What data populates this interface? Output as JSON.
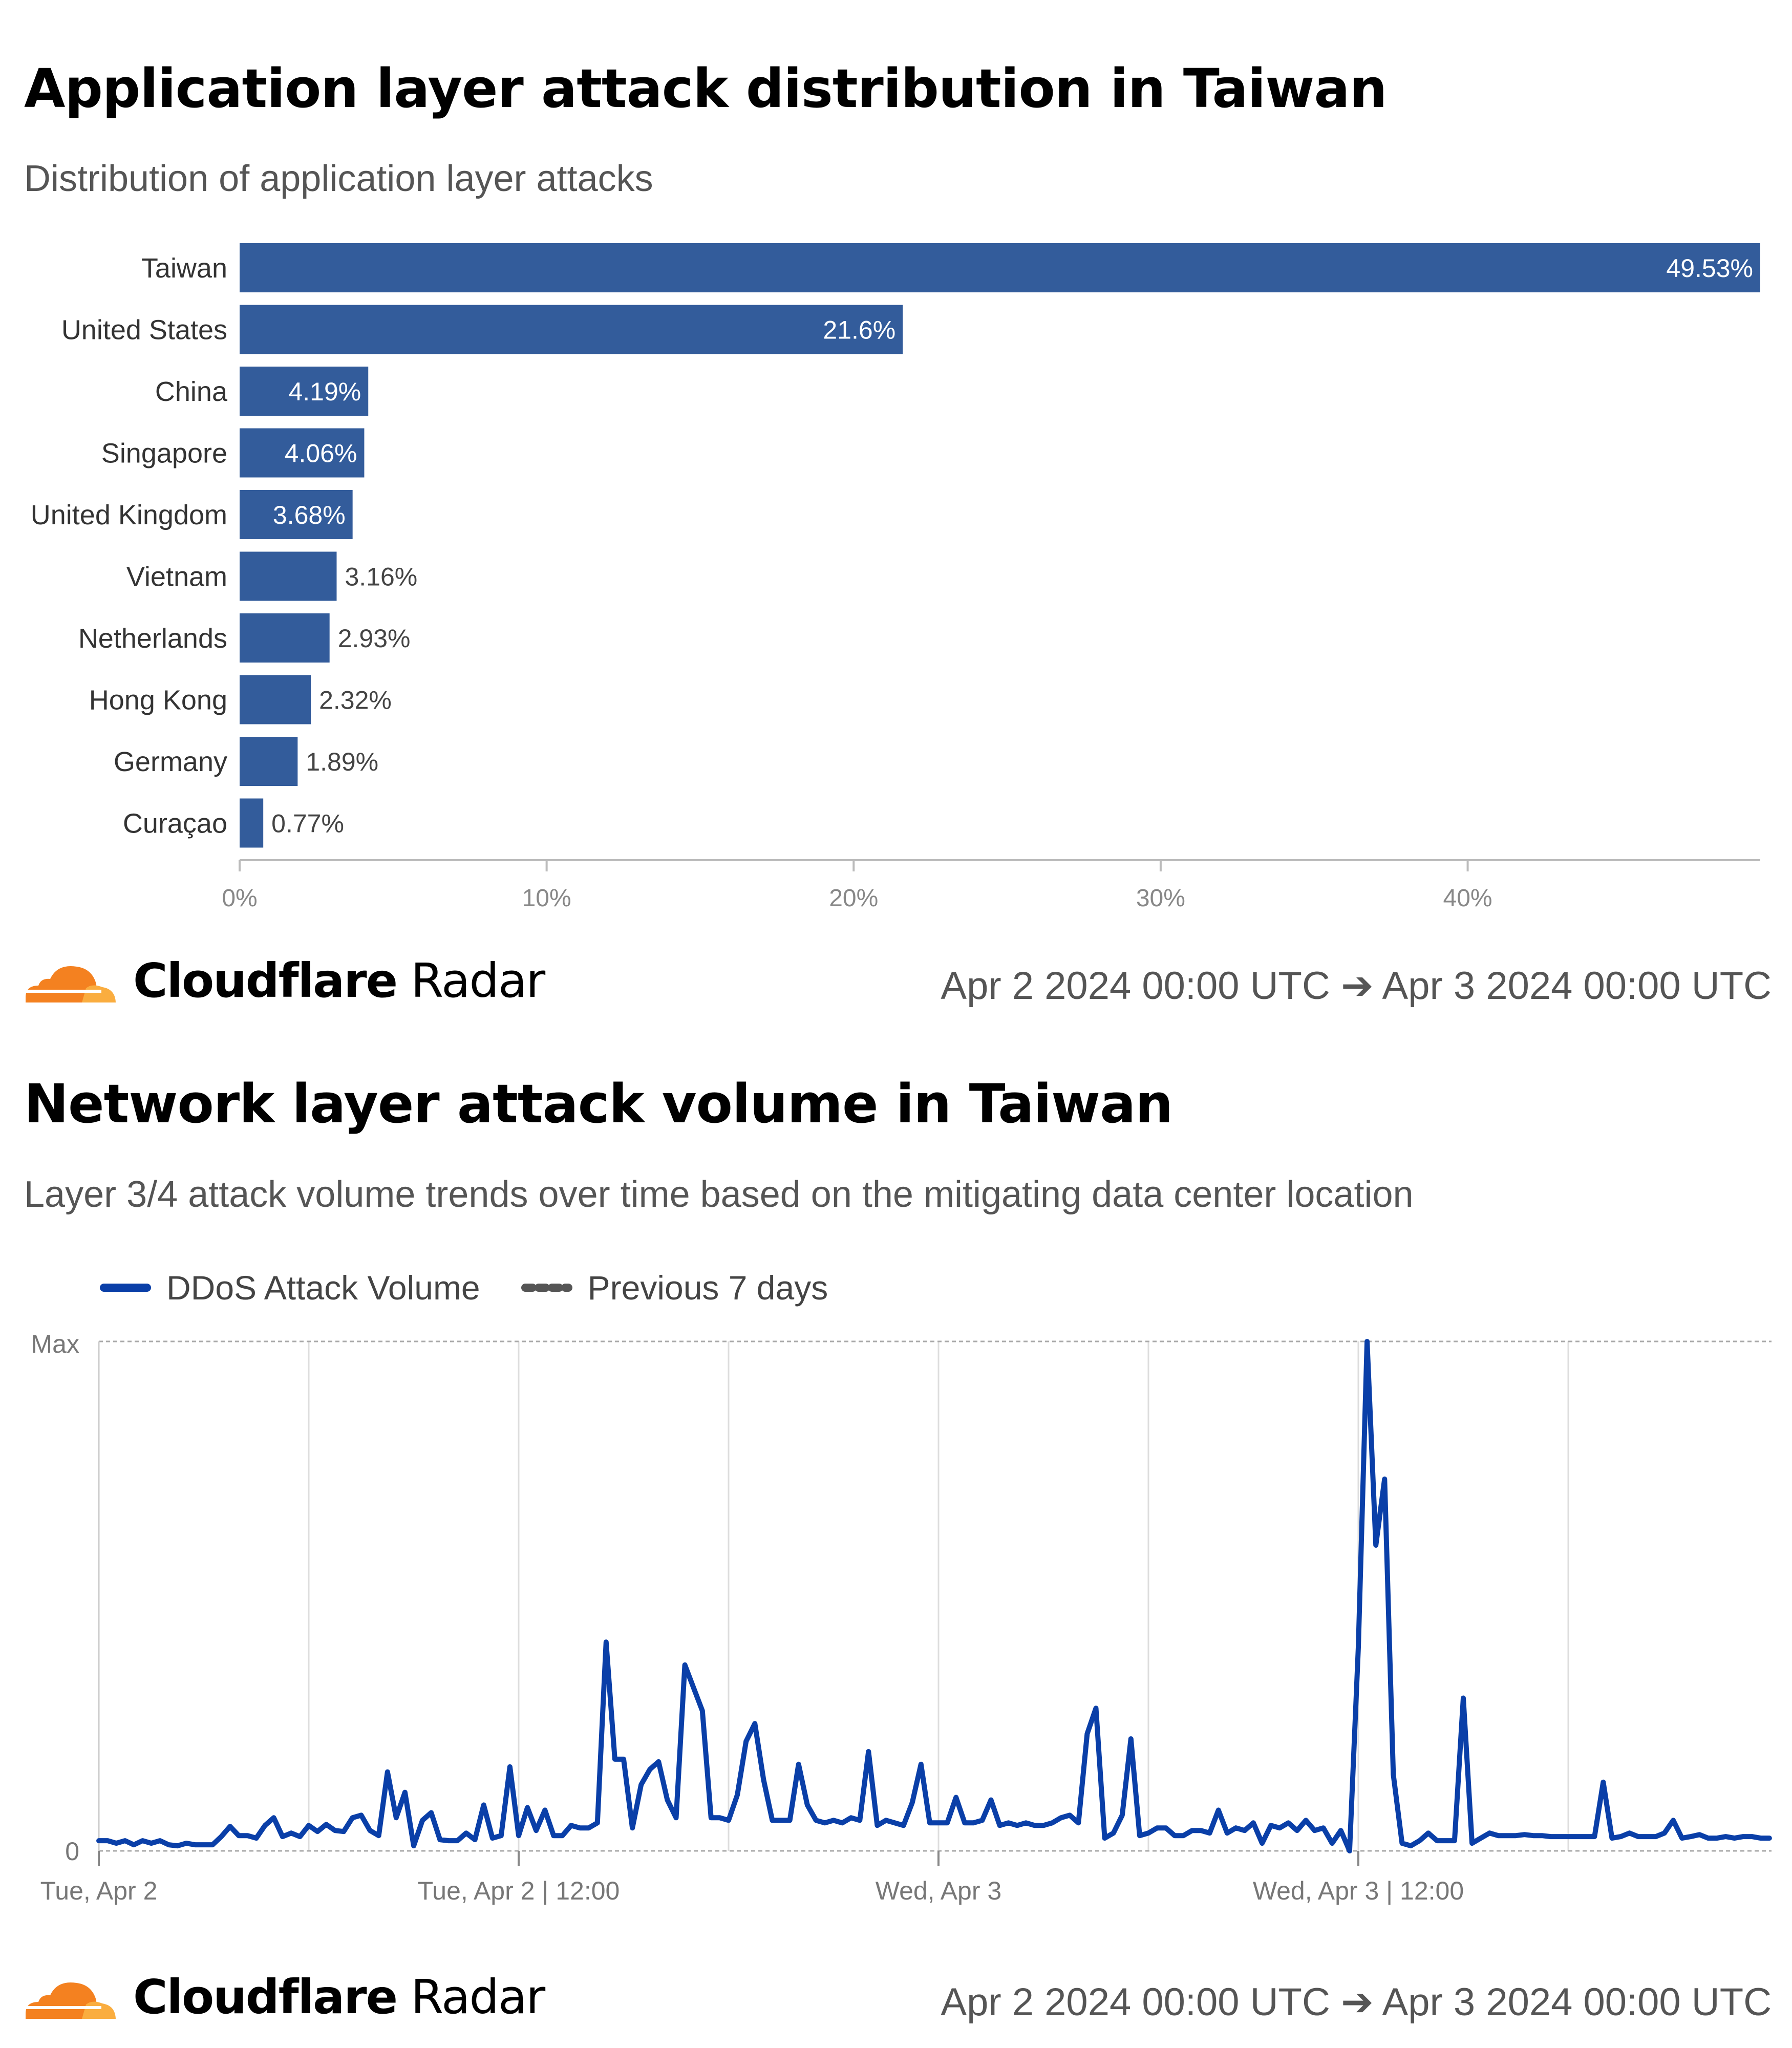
{
  "app_chart": {
    "title": "Application layer attack distribution in Taiwan",
    "subtitle": "Distribution of application layer attacks",
    "chart_data": {
      "type": "bar",
      "orientation": "horizontal",
      "categories": [
        "Taiwan",
        "United States",
        "China",
        "Singapore",
        "United Kingdom",
        "Vietnam",
        "Netherlands",
        "Hong Kong",
        "Germany",
        "Curaçao"
      ],
      "values": [
        49.53,
        21.6,
        4.19,
        4.06,
        3.68,
        3.16,
        2.93,
        2.32,
        1.89,
        0.77
      ],
      "value_labels": [
        "49.53%",
        "21.6%",
        "4.19%",
        "4.06%",
        "3.68%",
        "3.16%",
        "2.93%",
        "2.32%",
        "1.89%",
        "0.77%"
      ],
      "xlim": [
        0,
        49.53
      ],
      "x_ticks": [
        0,
        10,
        20,
        30,
        40
      ],
      "x_tick_labels": [
        "0%",
        "10%",
        "20%",
        "30%",
        "40%"
      ],
      "bar_color": "#335C9B",
      "grid": false
    },
    "brand": {
      "bold": "Cloudflare",
      "light": "Radar"
    },
    "date_range": "Apr 2 2024 00:00 UTC ➔ Apr 3 2024 00:00 UTC"
  },
  "net_chart": {
    "title": "Network layer attack volume in Taiwan",
    "subtitle": "Layer 3/4 attack volume trends over time based on the mitigating data center location",
    "legend": [
      {
        "label": "DDoS Attack Volume",
        "color": "#0A3FA8",
        "style": "solid"
      },
      {
        "label": "Previous 7 days",
        "color": "#555555",
        "style": "dashed"
      }
    ],
    "chart_data": {
      "type": "line",
      "series": [
        {
          "name": "DDoS Attack Volume",
          "color": "#0A3FA8",
          "x_range": [
            "Apr 2 2024 00:00",
            "Apr 3 2024 23:45"
          ],
          "interval": "15 min",
          "y": [
            0.02,
            0.02,
            0.015,
            0.02,
            0.012,
            0.02,
            0.015,
            0.02,
            0.012,
            0.01,
            0.015,
            0.012,
            0.012,
            0.012,
            0.028,
            0.048,
            0.03,
            0.03,
            0.025,
            0.05,
            0.065,
            0.028,
            0.035,
            0.028,
            0.05,
            0.038,
            0.052,
            0.04,
            0.038,
            0.065,
            0.07,
            0.04,
            0.03,
            0.155,
            0.065,
            0.115,
            0.01,
            0.06,
            0.075,
            0.022,
            0.02,
            0.02,
            0.035,
            0.022,
            0.09,
            0.025,
            0.03,
            0.165,
            0.03,
            0.085,
            0.04,
            0.08,
            0.03,
            0.03,
            0.05,
            0.045,
            0.045,
            0.055,
            0.41,
            0.18,
            0.18,
            0.045,
            0.13,
            0.16,
            0.175,
            0.1,
            0.065,
            0.365,
            0.32,
            0.275,
            0.065,
            0.065,
            0.06,
            0.11,
            0.215,
            0.25,
            0.14,
            0.06,
            0.06,
            0.06,
            0.17,
            0.09,
            0.06,
            0.055,
            0.06,
            0.055,
            0.065,
            0.06,
            0.195,
            0.05,
            0.06,
            0.055,
            0.05,
            0.095,
            0.17,
            0.055,
            0.055,
            0.055,
            0.105,
            0.055,
            0.055,
            0.06,
            0.1,
            0.05,
            0.055,
            0.05,
            0.055,
            0.05,
            0.05,
            0.055,
            0.065,
            0.07,
            0.055,
            0.23,
            0.28,
            0.025,
            0.035,
            0.07,
            0.22,
            0.03,
            0.035,
            0.045,
            0.045,
            0.03,
            0.03,
            0.04,
            0.04,
            0.035,
            0.08,
            0.035,
            0.045,
            0.04,
            0.055,
            0.015,
            0.05,
            0.045,
            0.055,
            0.04,
            0.06,
            0.04,
            0.045,
            0.015,
            0.04,
            0.0,
            0.4,
            1.0,
            0.6,
            0.73,
            0.15,
            0.015,
            0.01,
            0.02,
            0.035,
            0.02,
            0.02,
            0.02,
            0.3,
            0.015,
            0.025,
            0.035,
            0.03,
            0.03,
            0.03,
            0.032,
            0.03,
            0.03,
            0.028,
            0.028,
            0.028,
            0.028,
            0.028,
            0.028,
            0.135,
            0.025,
            0.028,
            0.035,
            0.028,
            0.028,
            0.028,
            0.035,
            0.06,
            0.025,
            0.028,
            0.032,
            0.025,
            0.025,
            0.028,
            0.025,
            0.028,
            0.028,
            0.025,
            0.025
          ]
        }
      ],
      "y_range_labels": [
        "0",
        "Max"
      ],
      "x_tick_labels": [
        "Tue, Apr 2",
        "Tue, Apr 2 | 12:00",
        "Wed, Apr 3",
        "Wed, Apr 3 | 12:00"
      ],
      "grid": true
    },
    "brand": {
      "bold": "Cloudflare",
      "light": "Radar"
    },
    "date_range": "Apr 2 2024 00:00 UTC ➔ Apr 3 2024 00:00 UTC"
  },
  "colors": {
    "logo_orange": "#F48120",
    "logo_light_orange": "#FAAD3F"
  }
}
